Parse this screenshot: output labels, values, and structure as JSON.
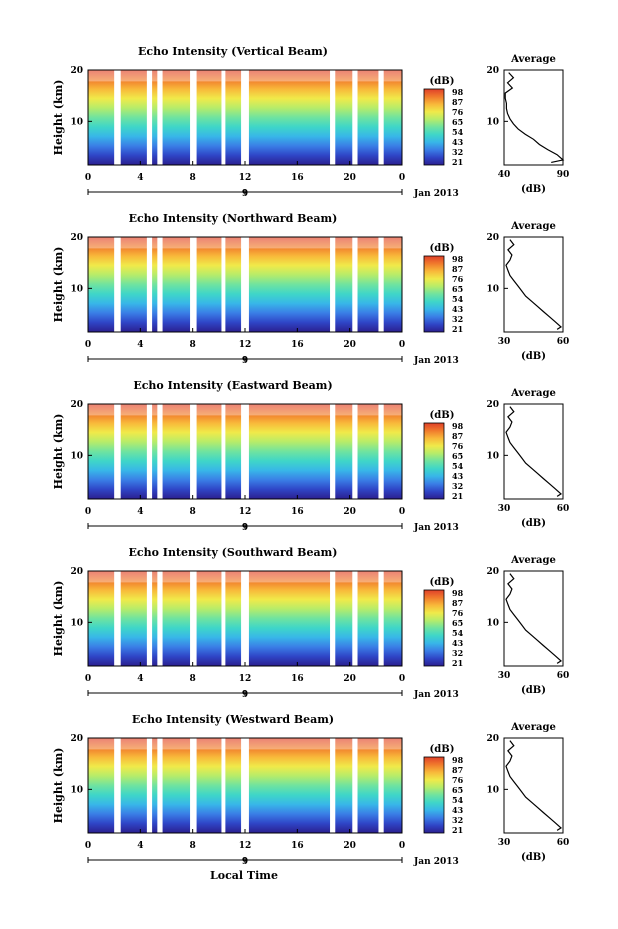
{
  "page": {
    "x_axis_label": "Local Time",
    "month_label": "Jan 2013",
    "date_tick": "9"
  },
  "colors": {
    "colorbar": [
      "#2b1f8f",
      "#2f45c6",
      "#3a7ee6",
      "#38b6e8",
      "#3fd6c8",
      "#6fe3a0",
      "#b6ec6a",
      "#f0ea4a",
      "#f8b83a",
      "#f07a2c",
      "#e0402a"
    ],
    "gap": "#ffffff"
  },
  "chart_data": [
    {
      "type": "heatmap",
      "title": "Echo Intensity (Vertical Beam)",
      "ylabel": "Height (km)",
      "x_ticks": [
        "0",
        "4",
        "8",
        "12",
        "16",
        "20",
        "0"
      ],
      "y_ticks": [
        "20",
        "10"
      ],
      "xlim": [
        0,
        24
      ],
      "ylim": [
        1.5,
        20
      ],
      "colorbar": {
        "label": "(dB)",
        "ticks": [
          "98",
          "87",
          "76",
          "65",
          "54",
          "43",
          "32",
          "21"
        ]
      },
      "data_gaps_hours": [
        [
          2.0,
          2.5
        ],
        [
          4.5,
          4.9
        ],
        [
          5.3,
          5.7
        ],
        [
          7.8,
          8.3
        ],
        [
          10.2,
          10.5
        ],
        [
          11.7,
          12.3
        ],
        [
          18.5,
          18.9
        ],
        [
          20.2,
          20.6
        ],
        [
          22.2,
          22.6
        ]
      ],
      "profile": {
        "title": "Average",
        "xlabel": "(dB)",
        "x_ticks": [
          "40",
          "90"
        ],
        "xlim": [
          40,
          90
        ],
        "y_ticks": [
          "20",
          "10"
        ],
        "ylim": [
          1.5,
          20
        ],
        "height_km": [
          19.5,
          18.5,
          17.5,
          16.5,
          15.5,
          14.5,
          13.5,
          12.5,
          11.5,
          10.5,
          9.5,
          8.5,
          7.5,
          6.5,
          5.5,
          4.5,
          3.5,
          2.5,
          2.0
        ],
        "value_db": [
          44,
          48,
          43,
          47,
          41,
          41,
          42,
          42,
          43,
          45,
          48,
          52,
          58,
          65,
          70,
          77,
          85,
          90,
          80
        ]
      }
    },
    {
      "type": "heatmap",
      "title": "Echo Intensity (Northward Beam)",
      "ylabel": "Height (km)",
      "x_ticks": [
        "0",
        "4",
        "8",
        "12",
        "16",
        "20",
        "0"
      ],
      "y_ticks": [
        "20",
        "10"
      ],
      "xlim": [
        0,
        24
      ],
      "ylim": [
        1.5,
        20
      ],
      "colorbar": {
        "label": "(dB)",
        "ticks": [
          "98",
          "87",
          "76",
          "65",
          "54",
          "43",
          "32",
          "21"
        ]
      },
      "data_gaps_hours": [
        [
          2.0,
          2.5
        ],
        [
          4.5,
          4.9
        ],
        [
          5.3,
          5.7
        ],
        [
          7.8,
          8.3
        ],
        [
          10.2,
          10.5
        ],
        [
          11.7,
          12.3
        ],
        [
          18.5,
          18.9
        ],
        [
          20.2,
          20.6
        ],
        [
          22.2,
          22.6
        ]
      ],
      "profile": {
        "title": "Average",
        "xlabel": "(dB)",
        "x_ticks": [
          "30",
          "60"
        ],
        "xlim": [
          30,
          60
        ],
        "y_ticks": [
          "20",
          "10"
        ],
        "ylim": [
          1.5,
          20
        ],
        "height_km": [
          19.5,
          18.5,
          17.5,
          16.5,
          15.5,
          14.5,
          13.5,
          12.5,
          11.5,
          10.5,
          9.5,
          8.5,
          7.5,
          6.5,
          5.5,
          4.5,
          3.5,
          2.5,
          2.0
        ],
        "value_db": [
          33,
          35,
          32,
          34,
          33,
          31,
          32,
          33,
          35,
          37,
          39,
          41,
          44,
          47,
          50,
          53,
          56,
          59,
          57
        ]
      }
    },
    {
      "type": "heatmap",
      "title": "Echo Intensity (Eastward Beam)",
      "ylabel": "Height (km)",
      "x_ticks": [
        "0",
        "4",
        "8",
        "12",
        "16",
        "20",
        "0"
      ],
      "y_ticks": [
        "20",
        "10"
      ],
      "xlim": [
        0,
        24
      ],
      "ylim": [
        1.5,
        20
      ],
      "colorbar": {
        "label": "(dB)",
        "ticks": [
          "98",
          "87",
          "76",
          "65",
          "54",
          "43",
          "32",
          "21"
        ]
      },
      "data_gaps_hours": [
        [
          2.0,
          2.5
        ],
        [
          4.5,
          4.9
        ],
        [
          5.3,
          5.7
        ],
        [
          7.8,
          8.3
        ],
        [
          10.2,
          10.5
        ],
        [
          11.7,
          12.3
        ],
        [
          18.5,
          18.9
        ],
        [
          20.2,
          20.6
        ],
        [
          22.2,
          22.6
        ]
      ],
      "profile": {
        "title": "Average",
        "xlabel": "(dB)",
        "x_ticks": [
          "30",
          "60"
        ],
        "xlim": [
          30,
          60
        ],
        "y_ticks": [
          "20",
          "10"
        ],
        "ylim": [
          1.5,
          20
        ],
        "height_km": [
          19.5,
          18.5,
          17.5,
          16.5,
          15.5,
          14.5,
          13.5,
          12.5,
          11.5,
          10.5,
          9.5,
          8.5,
          7.5,
          6.5,
          5.5,
          4.5,
          3.5,
          2.5,
          2.0
        ],
        "value_db": [
          33,
          35,
          32,
          34,
          33,
          31,
          32,
          33,
          35,
          37,
          39,
          41,
          44,
          47,
          50,
          53,
          56,
          59,
          57
        ]
      }
    },
    {
      "type": "heatmap",
      "title": "Echo Intensity (Southward Beam)",
      "ylabel": "Height (km)",
      "x_ticks": [
        "0",
        "4",
        "8",
        "12",
        "16",
        "20",
        "0"
      ],
      "y_ticks": [
        "20",
        "10"
      ],
      "xlim": [
        0,
        24
      ],
      "ylim": [
        1.5,
        20
      ],
      "colorbar": {
        "label": "(dB)",
        "ticks": [
          "98",
          "87",
          "76",
          "65",
          "54",
          "43",
          "32",
          "21"
        ]
      },
      "data_gaps_hours": [
        [
          2.0,
          2.5
        ],
        [
          4.5,
          4.9
        ],
        [
          5.3,
          5.7
        ],
        [
          7.8,
          8.3
        ],
        [
          10.2,
          10.5
        ],
        [
          11.7,
          12.3
        ],
        [
          18.5,
          18.9
        ],
        [
          20.2,
          20.6
        ],
        [
          22.2,
          22.6
        ]
      ],
      "profile": {
        "title": "Average",
        "xlabel": "(dB)",
        "x_ticks": [
          "30",
          "60"
        ],
        "xlim": [
          30,
          60
        ],
        "y_ticks": [
          "20",
          "10"
        ],
        "ylim": [
          1.5,
          20
        ],
        "height_km": [
          19.5,
          18.5,
          17.5,
          16.5,
          15.5,
          14.5,
          13.5,
          12.5,
          11.5,
          10.5,
          9.5,
          8.5,
          7.5,
          6.5,
          5.5,
          4.5,
          3.5,
          2.5,
          2.0
        ],
        "value_db": [
          33,
          35,
          32,
          34,
          33,
          31,
          32,
          33,
          35,
          37,
          39,
          41,
          44,
          47,
          50,
          53,
          56,
          59,
          57
        ]
      }
    },
    {
      "type": "heatmap",
      "title": "Echo Intensity (Westward Beam)",
      "ylabel": "Height (km)",
      "x_ticks": [
        "0",
        "4",
        "8",
        "12",
        "16",
        "20",
        "0"
      ],
      "y_ticks": [
        "20",
        "10"
      ],
      "xlim": [
        0,
        24
      ],
      "ylim": [
        1.5,
        20
      ],
      "colorbar": {
        "label": "(dB)",
        "ticks": [
          "98",
          "87",
          "76",
          "65",
          "54",
          "43",
          "32",
          "21"
        ]
      },
      "data_gaps_hours": [
        [
          2.0,
          2.5
        ],
        [
          4.5,
          4.9
        ],
        [
          5.3,
          5.7
        ],
        [
          7.8,
          8.3
        ],
        [
          10.2,
          10.5
        ],
        [
          11.7,
          12.3
        ],
        [
          18.5,
          18.9
        ],
        [
          20.2,
          20.6
        ],
        [
          22.2,
          22.6
        ]
      ],
      "profile": {
        "title": "Average",
        "xlabel": "(dB)",
        "x_ticks": [
          "30",
          "60"
        ],
        "xlim": [
          30,
          60
        ],
        "y_ticks": [
          "20",
          "10"
        ],
        "ylim": [
          1.5,
          20
        ],
        "height_km": [
          19.5,
          18.5,
          17.5,
          16.5,
          15.5,
          14.5,
          13.5,
          12.5,
          11.5,
          10.5,
          9.5,
          8.5,
          7.5,
          6.5,
          5.5,
          4.5,
          3.5,
          2.5,
          2.0
        ],
        "value_db": [
          33,
          35,
          32,
          34,
          33,
          31,
          32,
          33,
          35,
          37,
          39,
          41,
          44,
          47,
          50,
          53,
          56,
          59,
          57
        ]
      }
    }
  ]
}
